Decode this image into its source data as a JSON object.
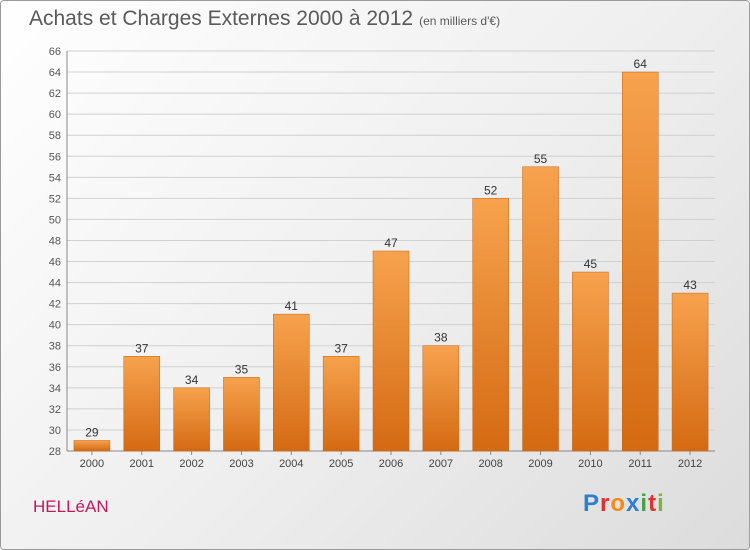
{
  "header": {
    "title": "Achats et Charges Externes 2000 à 2012",
    "subtitle": "(en milliers d'€)"
  },
  "footer": {
    "commune": "HELLéAN",
    "logo_text": "Proxiti",
    "logo_colors": [
      "#2e7fd1",
      "#e03030",
      "#f08c1a",
      "#2e7fd1",
      "#43a047",
      "#e03030",
      "#7cb342"
    ]
  },
  "chart_data": {
    "type": "bar",
    "categories": [
      "2000",
      "2001",
      "2002",
      "2003",
      "2004",
      "2005",
      "2006",
      "2007",
      "2008",
      "2009",
      "2010",
      "2011",
      "2012"
    ],
    "values": [
      29,
      37,
      34,
      35,
      41,
      37,
      47,
      38,
      52,
      55,
      45,
      64,
      43
    ],
    "ylim": [
      28,
      66
    ],
    "yticks": [
      28,
      30,
      32,
      34,
      36,
      38,
      40,
      42,
      44,
      46,
      48,
      50,
      52,
      54,
      56,
      58,
      60,
      62,
      64,
      66
    ],
    "grid": true,
    "bar_color_top": "#f7a24e",
    "bar_color_bottom": "#d46a12"
  }
}
